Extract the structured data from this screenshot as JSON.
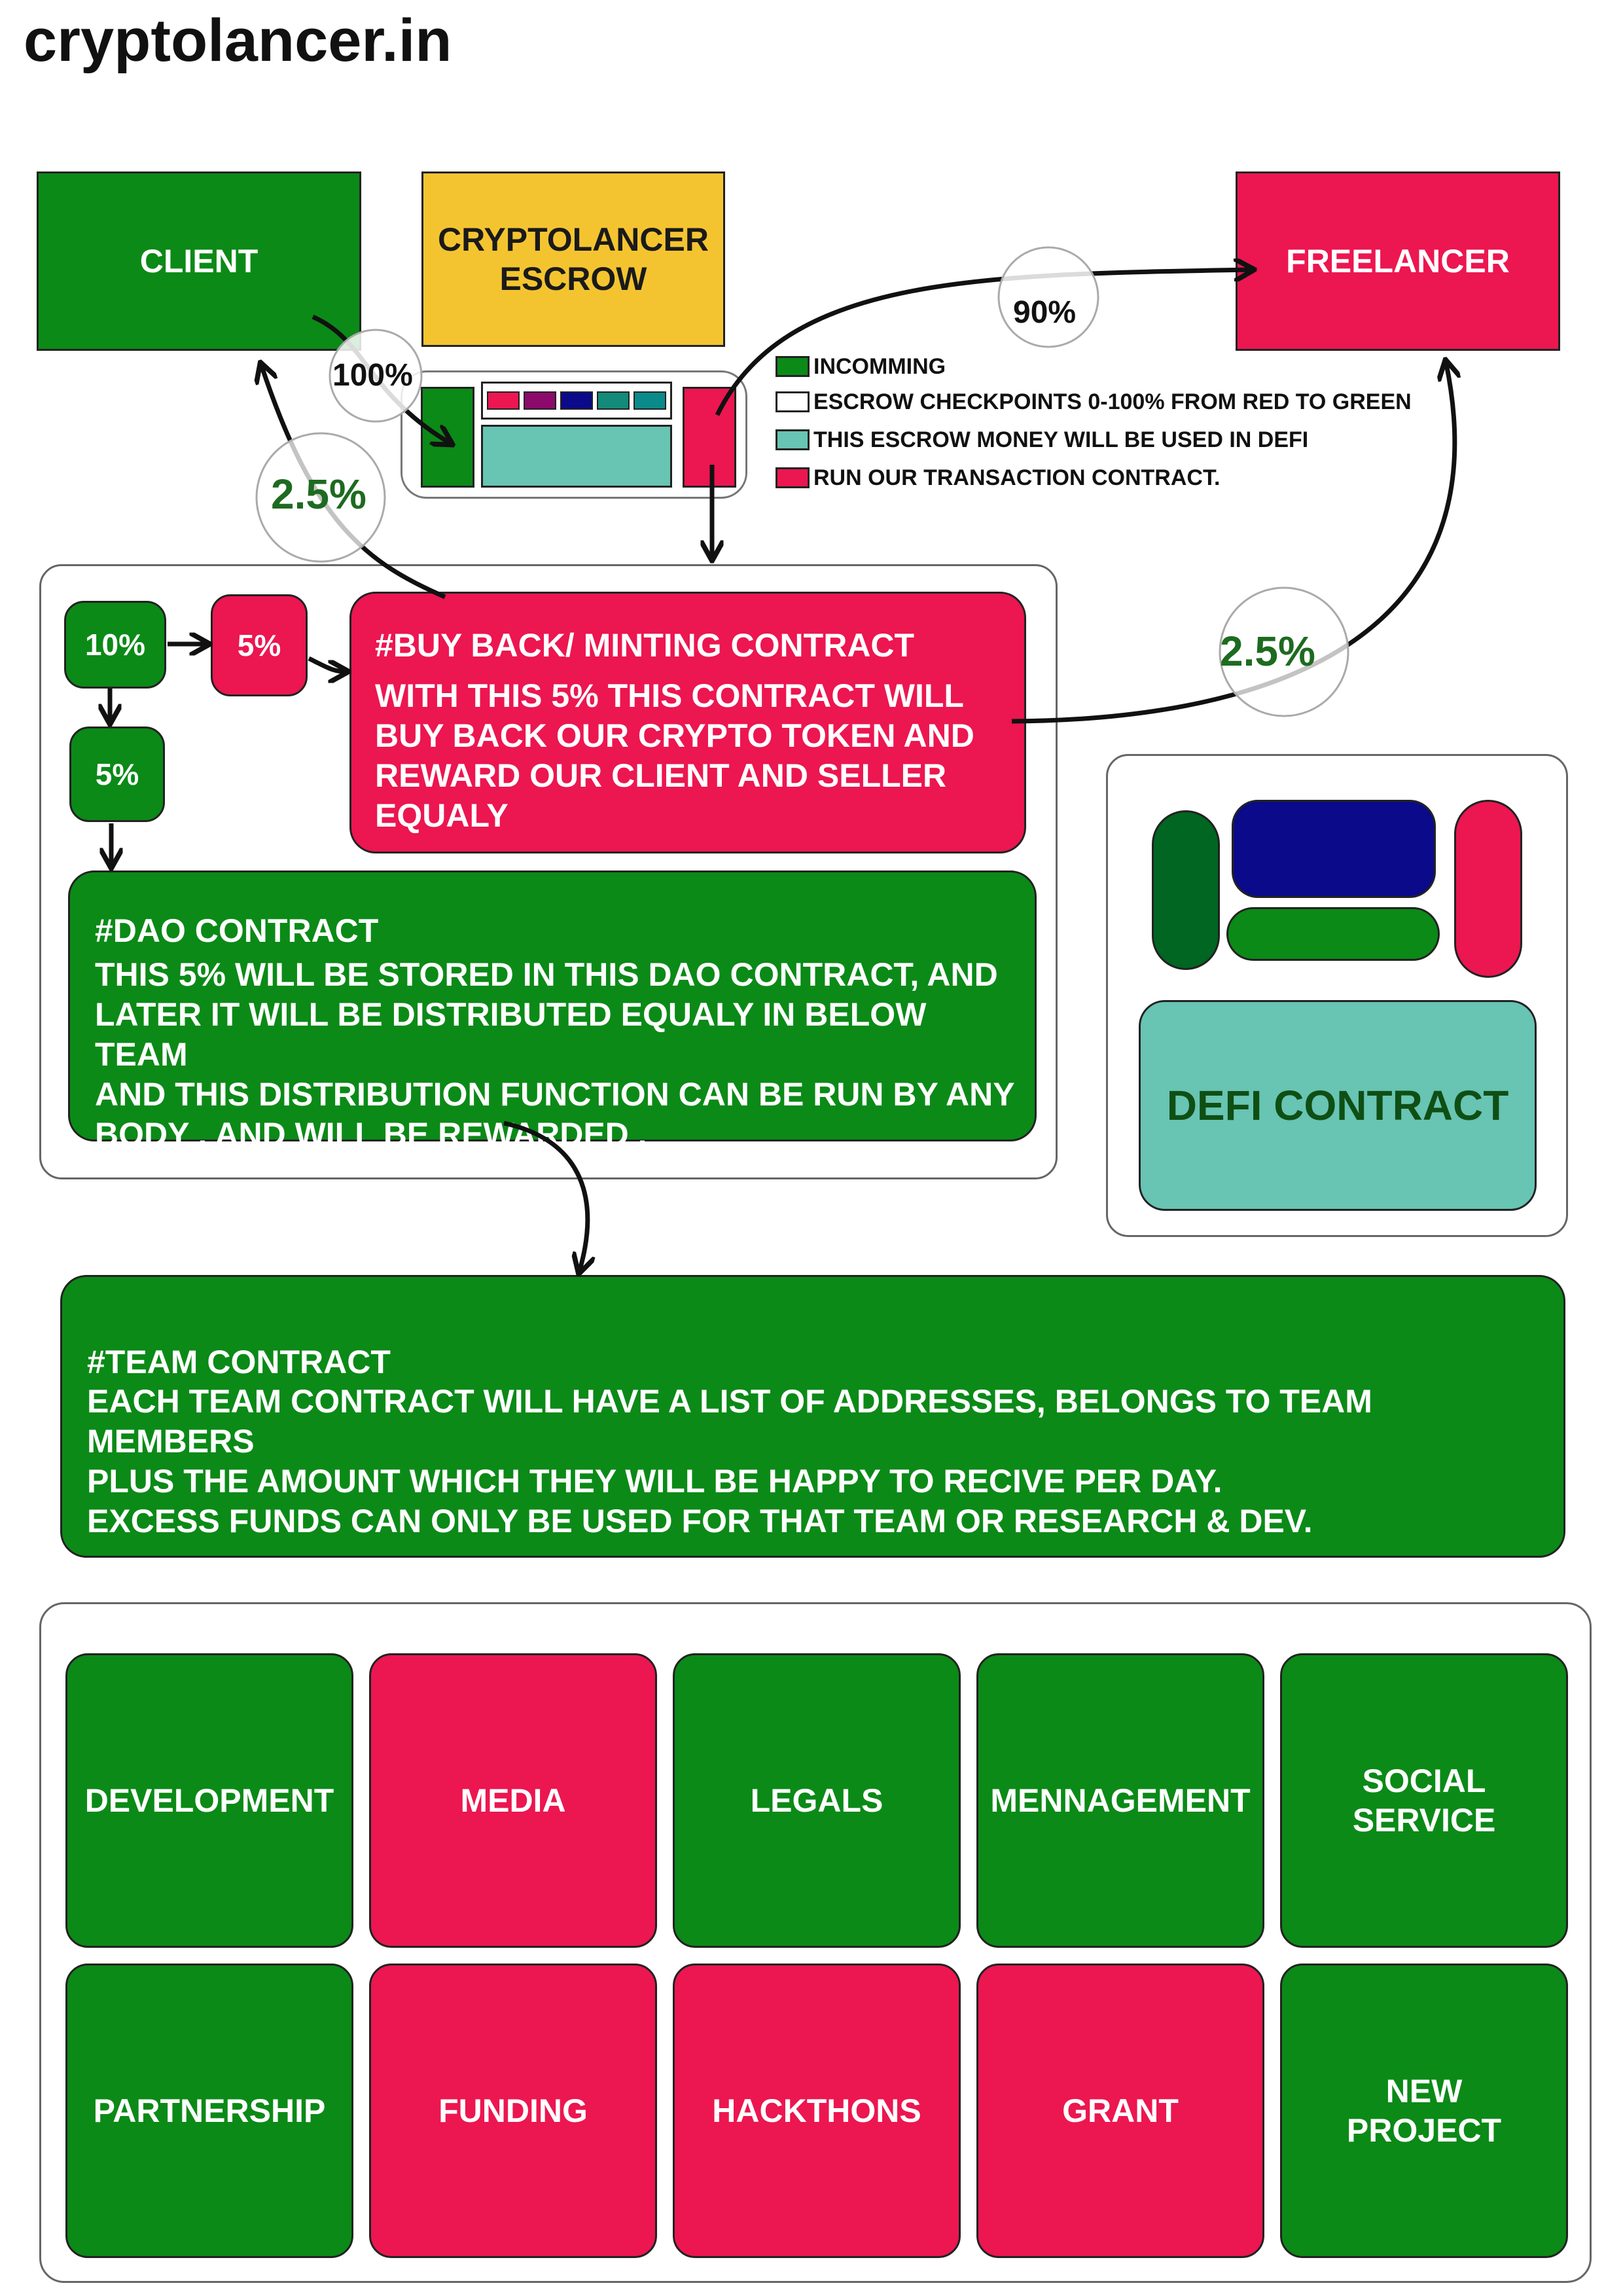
{
  "site_title": "cryptolancer.in",
  "nodes": {
    "client": "CLIENT",
    "escrow": "CRYPTOLANCER\nESCROW",
    "freelancer": "FREELANCER"
  },
  "percentages": {
    "client_to_escrow": "100%",
    "escrow_to_freelancer": "90%",
    "reward_client": "2.5%",
    "reward_freelancer": "2.5%",
    "fee_total": "10%",
    "buyback_share": "5%",
    "dao_share": "5%"
  },
  "legend": [
    {
      "label": "INCOMMING",
      "color": "#0b8a17"
    },
    {
      "label": "ESCROW CHECKPOINTS 0-100% FROM RED TO GREEN",
      "color": "#ffffff"
    },
    {
      "label": "THIS ESCROW MONEY WILL BE USED IN DEFI",
      "color": "#68c4b3"
    },
    {
      "label": "RUN OUR TRANSACTION CONTRACT.",
      "color": "#ec1650"
    }
  ],
  "escrow_checkpoint_colors": [
    "#ec1650",
    "#8b0a6b",
    "#0a0a8a",
    "#138a7a",
    "#0a8a8a"
  ],
  "buyback": {
    "heading": "#BUY BACK/ MINTING CONTRACT",
    "body": "WITH THIS 5% THIS CONTRACT WILL\nBUY BACK OUR CRYPTO TOKEN AND\nREWARD OUR CLIENT AND SELLER\nEQUALY"
  },
  "dao": {
    "heading": "#DAO CONTRACT",
    "body": "THIS 5% WILL BE STORED IN THIS DAO CONTRACT, AND\nLATER IT WILL BE DISTRIBUTED EQUALY IN BELOW TEAM\nAND THIS DISTRIBUTION FUNCTION CAN BE RUN BY ANY\nBODY , AND WILL BE REWARDED ."
  },
  "defi": {
    "label": "DEFI CONTRACT"
  },
  "team": {
    "heading": "#TEAM CONTRACT",
    "body": "EACH TEAM CONTRACT WILL HAVE A LIST OF ADDRESSES, BELONGS TO TEAM MEMBERS\nPLUS THE AMOUNT WHICH THEY WILL BE HAPPY TO RECIVE PER DAY.\nEXCESS FUNDS CAN ONLY BE USED FOR THAT TEAM OR RESEARCH & DEV."
  },
  "teams": [
    {
      "label": "DEVELOPMENT",
      "color": "green"
    },
    {
      "label": "MEDIA",
      "color": "red"
    },
    {
      "label": "LEGALS",
      "color": "green"
    },
    {
      "label": "MENNAGEMENT",
      "color": "green"
    },
    {
      "label": "SOCIAL\nSERVICE",
      "color": "green"
    },
    {
      "label": "PARTNERSHIP",
      "color": "green"
    },
    {
      "label": "FUNDING",
      "color": "red"
    },
    {
      "label": "HACKTHONS",
      "color": "red"
    },
    {
      "label": "GRANT",
      "color": "red"
    },
    {
      "label": "NEW\nPROJECT",
      "color": "green"
    }
  ]
}
